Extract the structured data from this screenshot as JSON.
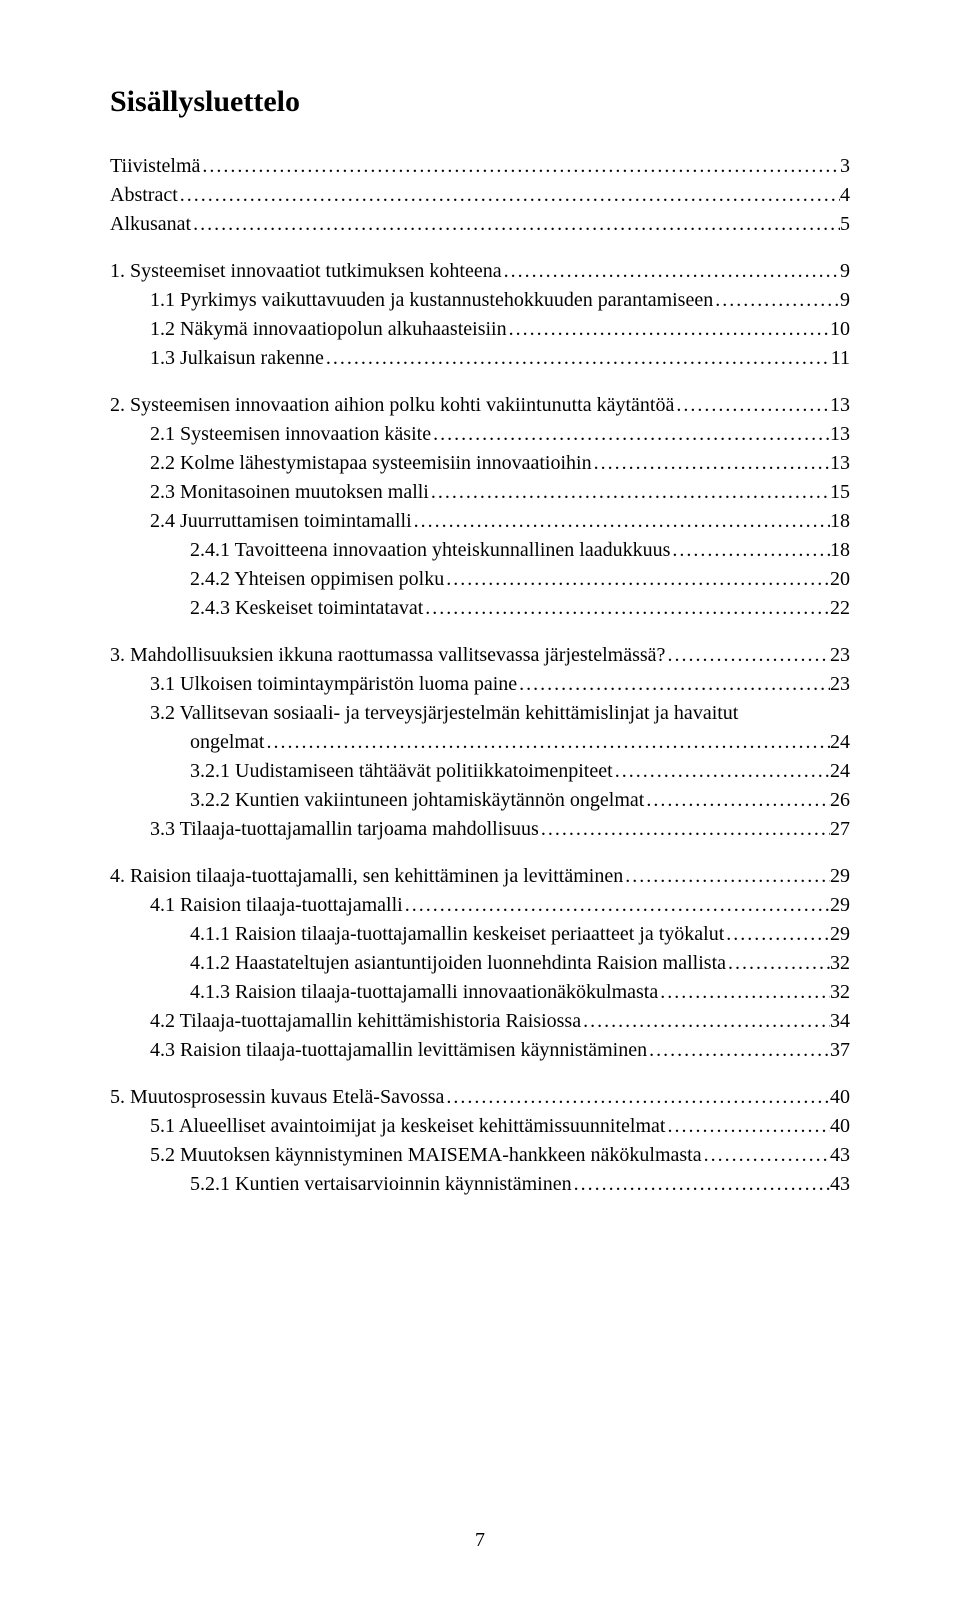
{
  "title": "Sisällysluettelo",
  "page_number": "7",
  "entries": [
    {
      "label": "Tiivistelmä",
      "page": "3",
      "level": 0,
      "gap": false
    },
    {
      "label": "Abstract",
      "page": "4",
      "level": 0,
      "gap": false
    },
    {
      "label": "Alkusanat",
      "page": "5",
      "level": 0,
      "gap": false
    },
    {
      "label": "1.  Systeemiset innovaatiot tutkimuksen kohteena",
      "page": "9",
      "level": 0,
      "gap": true
    },
    {
      "label": "1.1  Pyrkimys vaikuttavuuden ja kustannustehokkuuden parantamiseen",
      "page": "9",
      "level": 1,
      "gap": false
    },
    {
      "label": "1.2  Näkymä innovaatiopolun alkuhaasteisiin",
      "page": "10",
      "level": 1,
      "gap": false
    },
    {
      "label": "1.3  Julkaisun rakenne",
      "page": "11",
      "level": 1,
      "gap": false
    },
    {
      "label": "2.  Systeemisen innovaation aihion polku kohti vakiintunutta käytäntöä",
      "page": "13",
      "level": 0,
      "gap": true
    },
    {
      "label": "2.1  Systeemisen innovaation käsite",
      "page": "13",
      "level": 1,
      "gap": false
    },
    {
      "label": "2.2  Kolme lähestymistapaa systeemisiin innovaatioihin",
      "page": "13",
      "level": 1,
      "gap": false
    },
    {
      "label": "2.3  Monitasoinen muutoksen malli",
      "page": "15",
      "level": 1,
      "gap": false
    },
    {
      "label": "2.4  Juurruttamisen toimintamalli",
      "page": "18",
      "level": 1,
      "gap": false
    },
    {
      "label": "2.4.1  Tavoitteena innovaation yhteiskunnallinen laadukkuus",
      "page": "18",
      "level": 2,
      "gap": false
    },
    {
      "label": "2.4.2  Yhteisen oppimisen polku",
      "page": "20",
      "level": 2,
      "gap": false
    },
    {
      "label": "2.4.3  Keskeiset toimintatavat",
      "page": "22",
      "level": 2,
      "gap": false
    },
    {
      "label": "3.  Mahdollisuuksien ikkuna raottumassa vallitsevassa järjestelmässä?",
      "page": "23",
      "level": 0,
      "gap": true
    },
    {
      "label": "3.1  Ulkoisen toimintaympäristön luoma paine",
      "page": "23",
      "level": 1,
      "gap": false
    },
    {
      "label": "3.2  Vallitsevan sosiaali- ja terveysjärjestelmän kehittämislinjat ja havaitut",
      "page": "",
      "level": 1,
      "gap": false,
      "nowrap_dots": true
    },
    {
      "label": "ongelmat",
      "page": "24",
      "level": 2,
      "gap": false
    },
    {
      "label": "3.2.1  Uudistamiseen tähtäävät politiikkatoimenpiteet",
      "page": "24",
      "level": 2,
      "gap": false
    },
    {
      "label": "3.2.2  Kuntien vakiintuneen johtamiskäytännön ongelmat",
      "page": "26",
      "level": 2,
      "gap": false
    },
    {
      "label": "3.3  Tilaaja-tuottajamallin tarjoama mahdollisuus",
      "page": "27",
      "level": 1,
      "gap": false
    },
    {
      "label": "4.  Raision tilaaja-tuottajamalli, sen kehittäminen ja levittäminen",
      "page": "29",
      "level": 0,
      "gap": true
    },
    {
      "label": "4.1  Raision tilaaja-tuottajamalli",
      "page": "29",
      "level": 1,
      "gap": false
    },
    {
      "label": "4.1.1  Raision tilaaja-tuottajamallin keskeiset periaatteet ja työkalut",
      "page": "29",
      "level": 2,
      "gap": false
    },
    {
      "label": "4.1.2  Haastateltujen asiantuntijoiden luonnehdinta Raision mallista",
      "page": "32",
      "level": 2,
      "gap": false
    },
    {
      "label": "4.1.3  Raision tilaaja-tuottajamalli innovaationäkökulmasta",
      "page": "32",
      "level": 2,
      "gap": false
    },
    {
      "label": "4.2  Tilaaja-tuottajamallin kehittämishistoria Raisiossa",
      "page": "34",
      "level": 1,
      "gap": false
    },
    {
      "label": "4.3  Raision tilaaja-tuottajamallin levittämisen käynnistäminen",
      "page": "37",
      "level": 1,
      "gap": false
    },
    {
      "label": "5.  Muutosprosessin kuvaus Etelä-Savossa",
      "page": "40",
      "level": 0,
      "gap": true
    },
    {
      "label": "5.1  Alueelliset avaintoimijat ja keskeiset kehittämissuunnitelmat",
      "page": "40",
      "level": 1,
      "gap": false
    },
    {
      "label": "5.2  Muutoksen käynnistyminen MAISEMA-hankkeen näkökulmasta",
      "page": "43",
      "level": 1,
      "gap": false
    },
    {
      "label": "5.2.1  Kuntien vertaisarvioinnin käynnistäminen",
      "page": "43",
      "level": 2,
      "gap": false
    }
  ]
}
